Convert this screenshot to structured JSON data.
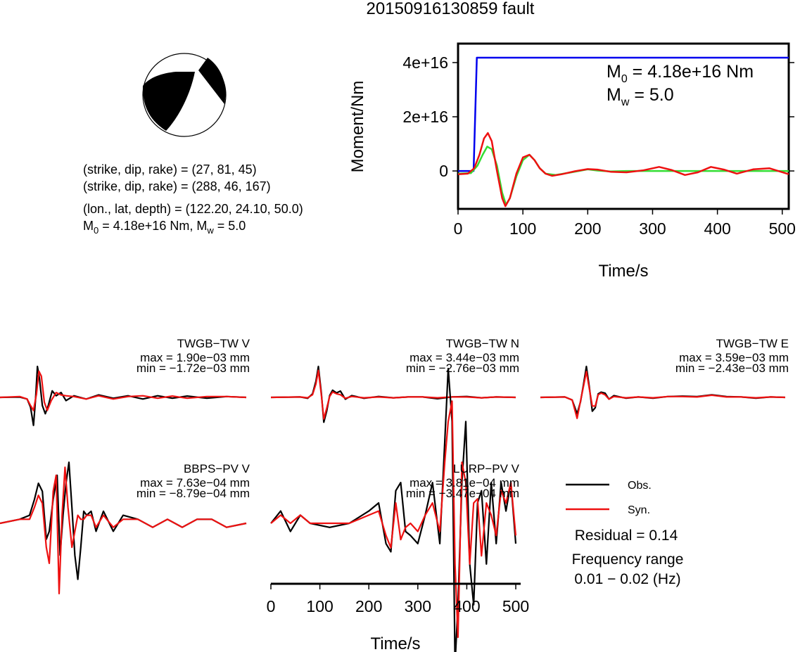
{
  "title": "20150916130859 fault",
  "beachball": {
    "fill": "#000000",
    "background": "#ffffff"
  },
  "info": {
    "line1": "(strike, dip, rake) = (27, 81, 45)",
    "line2": "(strike, dip, rake) = (288, 46, 167)",
    "line3": "(lon., lat, depth) = (122.20, 24.10, 50.0)",
    "m0_lead": "M",
    "m0_sub": "0",
    "m0_rest": " = 4.18e+16 Nm, M",
    "mw_sub": "w",
    "mw_rest": " = 5.0"
  },
  "chart_data": [
    {
      "type": "line",
      "panel": "moment",
      "xlabel": "Time/s",
      "ylabel": "Moment/Nm",
      "xlim": [
        0,
        510
      ],
      "ylim": [
        -1.4e+16,
        4.7e+16
      ],
      "xticks": [
        0,
        100,
        200,
        300,
        400,
        500
      ],
      "yticks": [
        0,
        2e+16,
        4e+16
      ],
      "ytick_labels": [
        "0",
        "2e+16",
        "4e+16"
      ],
      "annotation": {
        "m0_lead": "M",
        "m0_sub": "0",
        "m0_rest": " = 4.18e+16 Nm",
        "mw_lead": "M",
        "mw_sub": "w",
        "mw_rest": " = 5.0"
      },
      "series": [
        {
          "role": "cumulative-moment",
          "color": "#0000ee",
          "x": [
            0,
            24,
            29,
            510
          ],
          "y": [
            0,
            0,
            4.18e+16,
            4.18e+16
          ]
        },
        {
          "role": "moment-rate-1",
          "color": "#33dd33",
          "x": [
            0,
            20,
            30,
            38,
            45,
            52,
            60,
            68,
            74,
            80,
            90,
            100,
            110,
            118,
            126,
            135,
            150,
            175,
            200,
            215,
            235,
            260,
            300,
            350,
            400,
            450,
            510
          ],
          "y": [
            -1000000000000000.0,
            -800000000000000.0,
            2000000000000000.0,
            6000000000000000.0,
            9000000000000000.0,
            8000000000000000.0,
            2000000000000000.0,
            -8000000000000000.0,
            -1.25e+16,
            -1e+16,
            -2000000000000000.0,
            4000000000000000.0,
            6000000000000000.0,
            4000000000000000.0,
            1000000000000000.0,
            -1000000000000000.0,
            -1500000000000000.0,
            -500000000000000.0,
            600000000000000.0,
            150000000000000.0,
            -200000000000000.0,
            0,
            0,
            0,
            0,
            0,
            0
          ]
        },
        {
          "role": "moment-rate-2",
          "color": "#ee1111",
          "x": [
            0,
            15,
            25,
            33,
            40,
            46,
            52,
            60,
            68,
            73,
            80,
            90,
            100,
            110,
            118,
            126,
            135,
            145,
            160,
            180,
            200,
            215,
            235,
            260,
            285,
            310,
            330,
            350,
            370,
            390,
            410,
            430,
            455,
            480,
            510
          ],
          "y": [
            -1200000000000000.0,
            -1000000000000000.0,
            1000000000000000.0,
            6000000000000000.0,
            1.2e+16,
            1.4e+16,
            1.1e+16,
            0,
            -1e+16,
            -1.3e+16,
            -1e+16,
            -1000000000000000.0,
            5000000000000000.0,
            6000000000000000.0,
            4000000000000000.0,
            1000000000000000.0,
            -1000000000000000.0,
            -1800000000000000.0,
            -1200000000000000.0,
            -100000000000000.0,
            700000000000000.0,
            500000000000000.0,
            -300000000000000.0,
            -500000000000000.0,
            200000000000000.0,
            1500000000000000.0,
            300000000000000.0,
            -1500000000000000.0,
            -500000000000000.0,
            1500000000000000.0,
            500000000000000.0,
            -1000000000000000.0,
            600000000000000.0,
            1000000000000000.0,
            -1200000000000000.0
          ]
        }
      ]
    },
    {
      "type": "line",
      "panel": "waveforms",
      "xlabel": "Time/s",
      "xlim": [
        0,
        510
      ],
      "xticks": [
        0,
        100,
        200,
        300,
        400,
        500
      ],
      "legend": {
        "obs": "Obs.",
        "syn": "Syn.",
        "obs_color": "#000000",
        "syn_color": "#ee1111"
      },
      "residual": "Residual = 0.14",
      "freq_label": "Frequency range",
      "freq_value": "0.01 − 0.02 (Hz)",
      "traces": [
        {
          "station": "TWGB−TW V",
          "max": "max = 1.90e−03 mm",
          "min": "min = −1.72e−03 mm",
          "obs": {
            "x": [
              0,
              40,
              55,
              62,
              68,
              72,
              76,
              80,
              86,
              92,
              98,
              106,
              114,
              124,
              134,
              150,
              175,
              200,
              230,
              260,
              290,
              320,
              350,
              380,
              420,
              460,
              500
            ],
            "y": [
              0,
              0.02,
              -0.1,
              -0.6,
              -1.72,
              -0.2,
              1.9,
              1.2,
              -0.5,
              -1.0,
              -0.5,
              0.4,
              0.1,
              0.3,
              -0.2,
              0.1,
              -0.1,
              0.15,
              -0.05,
              0.1,
              -0.1,
              0.1,
              -0.05,
              0.08,
              -0.05,
              0.05,
              0
            ]
          },
          "syn": {
            "x": [
              0,
              40,
              55,
              62,
              68,
              74,
              79,
              84,
              90,
              96,
              104,
              114,
              124,
              134,
              150,
              175,
              200,
              230,
              260,
              290,
              320,
              350,
              380,
              420,
              460,
              500
            ],
            "y": [
              0,
              0.05,
              -0.1,
              -0.5,
              -0.8,
              0.2,
              1.6,
              1.3,
              -0.3,
              -0.8,
              -0.2,
              0.3,
              0.15,
              0.1,
              0.05,
              -0.1,
              0.1,
              -0.1,
              0.05,
              0.1,
              -0.05,
              0.08,
              -0.05,
              0.05,
              0.05,
              0
            ]
          }
        },
        {
          "station": "TWGB−TW N",
          "max": "max = 3.44e−03 mm",
          "min": "min = −2.76e−03 mm",
          "obs": {
            "x": [
              0,
              60,
              75,
              85,
              92,
              97,
              103,
              108,
              114,
              120,
              126,
              134,
              142,
              152,
              165,
              190,
              220,
              250,
              280,
              310,
              340,
              370,
              400,
              430,
              460,
              500
            ],
            "y": [
              0,
              0.05,
              -0.1,
              0.4,
              1.8,
              3.44,
              0.5,
              -2.76,
              -1.5,
              0.2,
              0.8,
              0.5,
              0.7,
              -0.2,
              0.2,
              -0.1,
              0.1,
              -0.05,
              0.05,
              0.05,
              -0.15,
              0.05,
              0.1,
              -0.05,
              0.05,
              0
            ]
          },
          "syn": {
            "x": [
              0,
              60,
              75,
              85,
              92,
              97,
              103,
              108,
              114,
              120,
              126,
              134,
              142,
              152,
              165,
              190,
              220,
              250,
              280,
              310,
              340,
              370,
              400,
              430,
              460,
              500
            ],
            "y": [
              0,
              0.05,
              -0.05,
              0.3,
              1.5,
              3.0,
              0.3,
              -2.4,
              -1.2,
              0.1,
              0.6,
              0.4,
              0.3,
              -0.1,
              0.1,
              -0.05,
              0.05,
              -0.05,
              0.05,
              0.05,
              -0.05,
              0.05,
              0.05,
              -0.05,
              0.05,
              0
            ]
          }
        },
        {
          "station": "TWGB−TW E",
          "max": "max = 3.59e−03 mm",
          "min": "min = −2.43e−03 mm",
          "obs": {
            "x": [
              0,
              50,
              65,
              75,
              82,
              88,
              94,
              100,
              106,
              112,
              118,
              124,
              132,
              140,
              150,
              175,
              200,
              230,
              260,
              290,
              320,
              350,
              380,
              410,
              440,
              470,
              500
            ],
            "y": [
              0,
              0.05,
              -0.3,
              -1.9,
              -0.5,
              1.5,
              3.59,
              1.2,
              -1.6,
              -1.2,
              0.4,
              0.6,
              0.5,
              -0.2,
              0.2,
              -0.1,
              0.05,
              -0.1,
              0.1,
              0.15,
              0.1,
              0.3,
              0.1,
              0.05,
              -0.1,
              0.05,
              0
            ]
          },
          "syn": {
            "x": [
              0,
              50,
              65,
              75,
              82,
              88,
              94,
              100,
              106,
              112,
              118,
              124,
              132,
              140,
              150,
              175,
              200,
              230,
              260,
              290,
              320,
              350,
              380,
              410,
              440,
              470,
              500
            ],
            "y": [
              0,
              0.05,
              -0.3,
              -2.43,
              -0.4,
              1.3,
              3.0,
              1.0,
              -1.0,
              -1.0,
              0.3,
              0.5,
              0.3,
              -0.2,
              0.1,
              -0.05,
              0.05,
              -0.05,
              0.1,
              0.1,
              0.05,
              0.25,
              0.05,
              0.05,
              -0.05,
              0.05,
              0
            ]
          }
        },
        {
          "station": "BBPS−PV V",
          "max": "max = 7.63e−04 mm",
          "min": "min = −8.79e−04 mm",
          "obs": {
            "x": [
              0,
              40,
              60,
              70,
              78,
              86,
              94,
              100,
              108,
              116,
              122,
              128,
              134,
              140,
              146,
              152,
              158,
              164,
              170,
              176,
              185,
              195,
              210,
              230,
              250,
              280,
              310,
              340,
              370,
              400,
              430,
              460,
              500
            ],
            "y": [
              0,
              0.05,
              0.1,
              0.3,
              0.5,
              0.4,
              -0.2,
              -0.1,
              0.3,
              0.6,
              -0.4,
              0.1,
              0.5,
              0.763,
              0.2,
              -0.4,
              -0.7,
              -0.3,
              0.15,
              0.1,
              0.15,
              -0.1,
              0.15,
              -0.1,
              0.1,
              0.05,
              -0.05,
              0.05,
              -0.05,
              0.05,
              0.05,
              -0.05,
              0
            ]
          },
          "syn": {
            "x": [
              0,
              40,
              60,
              70,
              78,
              86,
              94,
              100,
              108,
              114,
              120,
              126,
              132,
              138,
              146,
              152,
              158,
              164,
              170,
              176,
              185,
              195,
              210,
              230,
              250,
              280,
              310,
              340,
              370,
              400,
              430,
              460,
              500
            ],
            "y": [
              0,
              0.05,
              0.05,
              0.2,
              0.35,
              0.25,
              -0.3,
              -0.5,
              0.4,
              0.6,
              -0.879,
              0.1,
              0.7,
              0.2,
              -0.3,
              -0.1,
              0.1,
              0.05,
              0.05,
              0.1,
              0.1,
              -0.05,
              0.1,
              -0.05,
              0.05,
              0.05,
              -0.05,
              0.05,
              -0.05,
              0.05,
              0.05,
              -0.05,
              0
            ]
          }
        },
        {
          "station": "LURP−PV V",
          "max": "max = 3.81e−04 mm",
          "min": "min = −3.47e−04 mm",
          "obs": {
            "x": [
              0,
              20,
              40,
              60,
              80,
              120,
              160,
              200,
              220,
              235,
              245,
              255,
              265,
              275,
              285,
              300,
              315,
              330,
              345,
              355,
              362,
              370,
              376,
              382,
              390,
              398,
              406,
              414,
              422,
              430,
              440,
              450,
              460,
              470,
              480,
              490,
              500
            ],
            "y": [
              0,
              0.03,
              -0.02,
              0.02,
              0,
              -0.01,
              0,
              0.03,
              0.05,
              -0.05,
              -0.07,
              0.08,
              0.1,
              -0.02,
              -0.03,
              -0.05,
              0.02,
              0.1,
              -0.05,
              0.2,
              0.38,
              0.25,
              -0.347,
              -0.2,
              0.1,
              0.25,
              -0.1,
              -0.2,
              0.05,
              0.08,
              -0.1,
              0.1,
              -0.05,
              0.1,
              0.03,
              0.1,
              -0.05
            ]
          },
          "syn": {
            "x": [
              0,
              20,
              40,
              60,
              80,
              120,
              160,
              200,
              220,
              235,
              245,
              255,
              265,
              275,
              285,
              300,
              315,
              330,
              345,
              355,
              362,
              370,
              376,
              382,
              390,
              398,
              406,
              414,
              422,
              430,
              440,
              450,
              460,
              470,
              480,
              490,
              500
            ],
            "y": [
              0,
              0.02,
              0,
              0.02,
              0,
              0,
              0,
              0.02,
              0.03,
              -0.03,
              -0.06,
              0.05,
              -0.04,
              -0.01,
              0,
              -0.02,
              0.02,
              0.05,
              -0.02,
              0.15,
              0.25,
              0.3,
              -0.1,
              -0.28,
              0.15,
              0.1,
              -0.1,
              0.05,
              0.06,
              -0.08,
              0.05,
              0.02,
              -0.03,
              0.08,
              0.05,
              0.1,
              -0.03
            ]
          }
        }
      ]
    }
  ]
}
